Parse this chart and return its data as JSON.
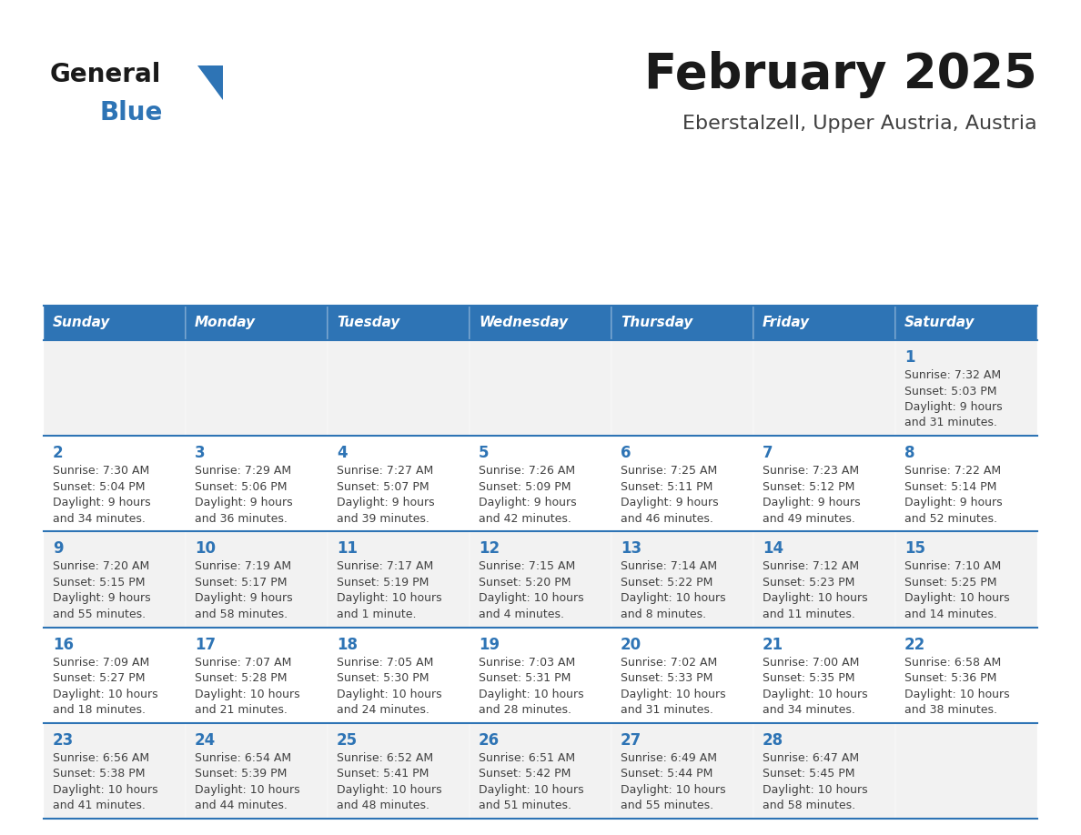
{
  "title": "February 2025",
  "subtitle": "Eberstalzell, Upper Austria, Austria",
  "days_of_week": [
    "Sunday",
    "Monday",
    "Tuesday",
    "Wednesday",
    "Thursday",
    "Friday",
    "Saturday"
  ],
  "header_bg": "#2E74B5",
  "header_text": "#FFFFFF",
  "row_bg_even": "#F2F2F2",
  "row_bg_odd": "#FFFFFF",
  "cell_border": "#2E74B5",
  "day_num_color": "#2E74B5",
  "info_text_color": "#404040",
  "title_color": "#1A1A1A",
  "subtitle_color": "#404040",
  "logo_general_color": "#1A1A1A",
  "logo_blue_color": "#2E74B5",
  "fig_width": 11.88,
  "fig_height": 9.18,
  "dpi": 100,
  "calendar_data": [
    [
      {
        "date": "",
        "sunrise": "",
        "sunset": "",
        "daylight": ""
      },
      {
        "date": "",
        "sunrise": "",
        "sunset": "",
        "daylight": ""
      },
      {
        "date": "",
        "sunrise": "",
        "sunset": "",
        "daylight": ""
      },
      {
        "date": "",
        "sunrise": "",
        "sunset": "",
        "daylight": ""
      },
      {
        "date": "",
        "sunrise": "",
        "sunset": "",
        "daylight": ""
      },
      {
        "date": "",
        "sunrise": "",
        "sunset": "",
        "daylight": ""
      },
      {
        "date": "1",
        "sunrise": "7:32 AM",
        "sunset": "5:03 PM",
        "daylight": "9 hours\nand 31 minutes."
      }
    ],
    [
      {
        "date": "2",
        "sunrise": "7:30 AM",
        "sunset": "5:04 PM",
        "daylight": "9 hours\nand 34 minutes."
      },
      {
        "date": "3",
        "sunrise": "7:29 AM",
        "sunset": "5:06 PM",
        "daylight": "9 hours\nand 36 minutes."
      },
      {
        "date": "4",
        "sunrise": "7:27 AM",
        "sunset": "5:07 PM",
        "daylight": "9 hours\nand 39 minutes."
      },
      {
        "date": "5",
        "sunrise": "7:26 AM",
        "sunset": "5:09 PM",
        "daylight": "9 hours\nand 42 minutes."
      },
      {
        "date": "6",
        "sunrise": "7:25 AM",
        "sunset": "5:11 PM",
        "daylight": "9 hours\nand 46 minutes."
      },
      {
        "date": "7",
        "sunrise": "7:23 AM",
        "sunset": "5:12 PM",
        "daylight": "9 hours\nand 49 minutes."
      },
      {
        "date": "8",
        "sunrise": "7:22 AM",
        "sunset": "5:14 PM",
        "daylight": "9 hours\nand 52 minutes."
      }
    ],
    [
      {
        "date": "9",
        "sunrise": "7:20 AM",
        "sunset": "5:15 PM",
        "daylight": "9 hours\nand 55 minutes."
      },
      {
        "date": "10",
        "sunrise": "7:19 AM",
        "sunset": "5:17 PM",
        "daylight": "9 hours\nand 58 minutes."
      },
      {
        "date": "11",
        "sunrise": "7:17 AM",
        "sunset": "5:19 PM",
        "daylight": "10 hours\nand 1 minute."
      },
      {
        "date": "12",
        "sunrise": "7:15 AM",
        "sunset": "5:20 PM",
        "daylight": "10 hours\nand 4 minutes."
      },
      {
        "date": "13",
        "sunrise": "7:14 AM",
        "sunset": "5:22 PM",
        "daylight": "10 hours\nand 8 minutes."
      },
      {
        "date": "14",
        "sunrise": "7:12 AM",
        "sunset": "5:23 PM",
        "daylight": "10 hours\nand 11 minutes."
      },
      {
        "date": "15",
        "sunrise": "7:10 AM",
        "sunset": "5:25 PM",
        "daylight": "10 hours\nand 14 minutes."
      }
    ],
    [
      {
        "date": "16",
        "sunrise": "7:09 AM",
        "sunset": "5:27 PM",
        "daylight": "10 hours\nand 18 minutes."
      },
      {
        "date": "17",
        "sunrise": "7:07 AM",
        "sunset": "5:28 PM",
        "daylight": "10 hours\nand 21 minutes."
      },
      {
        "date": "18",
        "sunrise": "7:05 AM",
        "sunset": "5:30 PM",
        "daylight": "10 hours\nand 24 minutes."
      },
      {
        "date": "19",
        "sunrise": "7:03 AM",
        "sunset": "5:31 PM",
        "daylight": "10 hours\nand 28 minutes."
      },
      {
        "date": "20",
        "sunrise": "7:02 AM",
        "sunset": "5:33 PM",
        "daylight": "10 hours\nand 31 minutes."
      },
      {
        "date": "21",
        "sunrise": "7:00 AM",
        "sunset": "5:35 PM",
        "daylight": "10 hours\nand 34 minutes."
      },
      {
        "date": "22",
        "sunrise": "6:58 AM",
        "sunset": "5:36 PM",
        "daylight": "10 hours\nand 38 minutes."
      }
    ],
    [
      {
        "date": "23",
        "sunrise": "6:56 AM",
        "sunset": "5:38 PM",
        "daylight": "10 hours\nand 41 minutes."
      },
      {
        "date": "24",
        "sunrise": "6:54 AM",
        "sunset": "5:39 PM",
        "daylight": "10 hours\nand 44 minutes."
      },
      {
        "date": "25",
        "sunrise": "6:52 AM",
        "sunset": "5:41 PM",
        "daylight": "10 hours\nand 48 minutes."
      },
      {
        "date": "26",
        "sunrise": "6:51 AM",
        "sunset": "5:42 PM",
        "daylight": "10 hours\nand 51 minutes."
      },
      {
        "date": "27",
        "sunrise": "6:49 AM",
        "sunset": "5:44 PM",
        "daylight": "10 hours\nand 55 minutes."
      },
      {
        "date": "28",
        "sunrise": "6:47 AM",
        "sunset": "5:45 PM",
        "daylight": "10 hours\nand 58 minutes."
      },
      {
        "date": "",
        "sunrise": "",
        "sunset": "",
        "daylight": ""
      }
    ]
  ]
}
